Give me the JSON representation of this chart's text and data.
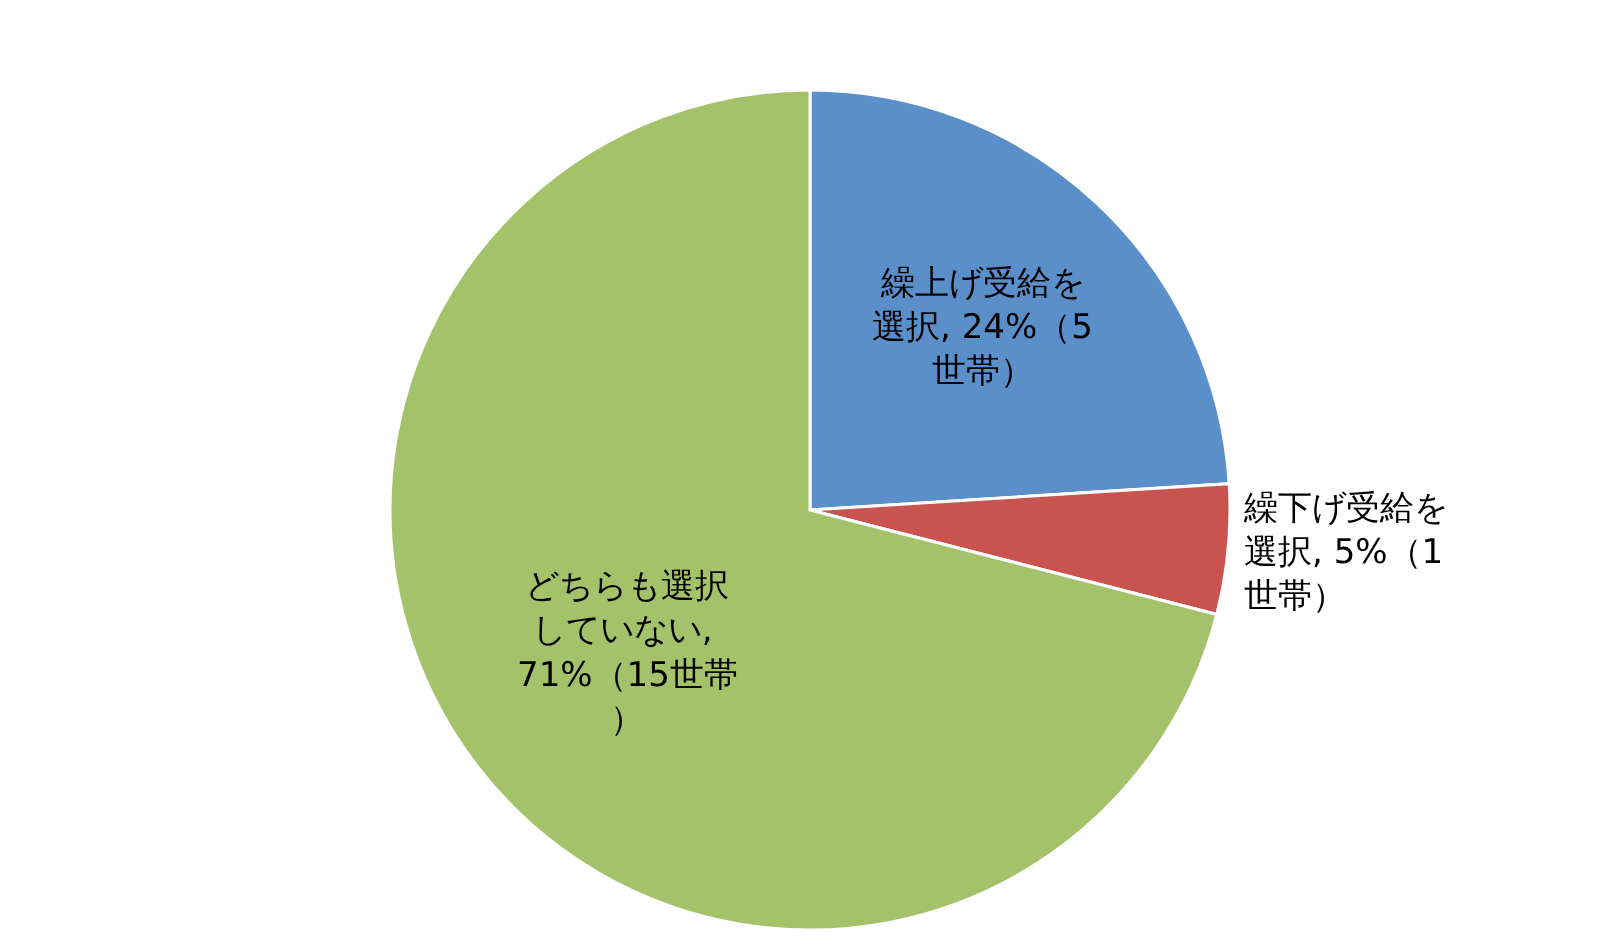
{
  "chart_data": {
    "type": "pie",
    "categories": [
      "繰上げ受給を選択",
      "繰下げ受給を選択",
      "どちらも選択していない"
    ],
    "values": [
      24,
      5,
      71
    ],
    "colors": [
      "#5b8fca",
      "#c9534f",
      "#a4c26a"
    ],
    "value_labels": [
      ", 24%（5世帯）",
      ", 5%（1世帯）",
      ", 71%（15世帯）"
    ]
  }
}
